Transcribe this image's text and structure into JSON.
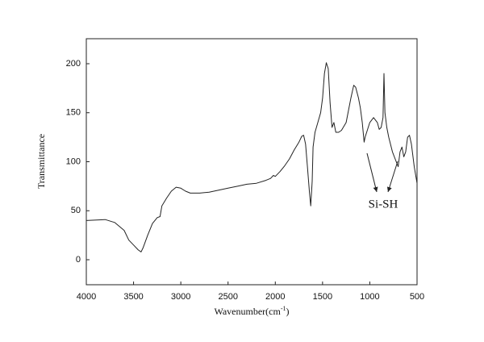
{
  "chart_data": {
    "type": "line",
    "y_label": "Transmittance",
    "x_label": {
      "text": "Wavenumber(cm",
      "superscript": "-1",
      "suffix": ")"
    },
    "annotation": "Si-SH",
    "color": "#222222",
    "x_reversed": true,
    "xlim": [
      4000,
      500
    ],
    "xticks": [
      4000,
      3500,
      3000,
      2500,
      2000,
      1500,
      1000,
      500
    ],
    "ylim": [
      -25.5,
      225.5
    ],
    "yticks": [
      0,
      50,
      100,
      150,
      200
    ],
    "x": [
      4000,
      3800,
      3700,
      3600,
      3550,
      3500,
      3450,
      3420,
      3400,
      3350,
      3300,
      3250,
      3220,
      3200,
      3150,
      3100,
      3050,
      3000,
      2950,
      2900,
      2800,
      2700,
      2600,
      2500,
      2400,
      2300,
      2200,
      2100,
      2050,
      2020,
      2000,
      1950,
      1900,
      1850,
      1800,
      1750,
      1720,
      1700,
      1680,
      1660,
      1640,
      1625,
      1610,
      1600,
      1580,
      1550,
      1520,
      1500,
      1480,
      1460,
      1440,
      1420,
      1400,
      1380,
      1360,
      1330,
      1300,
      1250,
      1200,
      1170,
      1150,
      1120,
      1100,
      1080,
      1060,
      1050,
      1000,
      960,
      920,
      900,
      880,
      860,
      850,
      840,
      820,
      800,
      760,
      720,
      700,
      680,
      660,
      640,
      620,
      600,
      580,
      560,
      530,
      500
    ],
    "values": [
      40,
      41,
      38,
      30,
      20,
      15,
      10,
      8,
      12,
      25,
      37,
      43,
      44,
      55,
      63,
      70,
      74,
      73,
      70,
      68,
      68,
      69,
      71,
      73,
      75,
      77,
      78,
      81,
      83,
      86,
      85,
      90,
      96,
      103,
      112,
      120,
      126,
      127,
      118,
      95,
      70,
      55,
      80,
      115,
      130,
      140,
      150,
      165,
      190,
      201,
      195,
      160,
      135,
      140,
      130,
      130,
      132,
      140,
      165,
      178,
      176,
      165,
      155,
      140,
      120,
      125,
      140,
      145,
      140,
      133,
      135,
      145,
      190,
      150,
      135,
      125,
      110,
      100,
      95,
      110,
      115,
      105,
      110,
      125,
      127,
      118,
      95,
      78
    ]
  }
}
